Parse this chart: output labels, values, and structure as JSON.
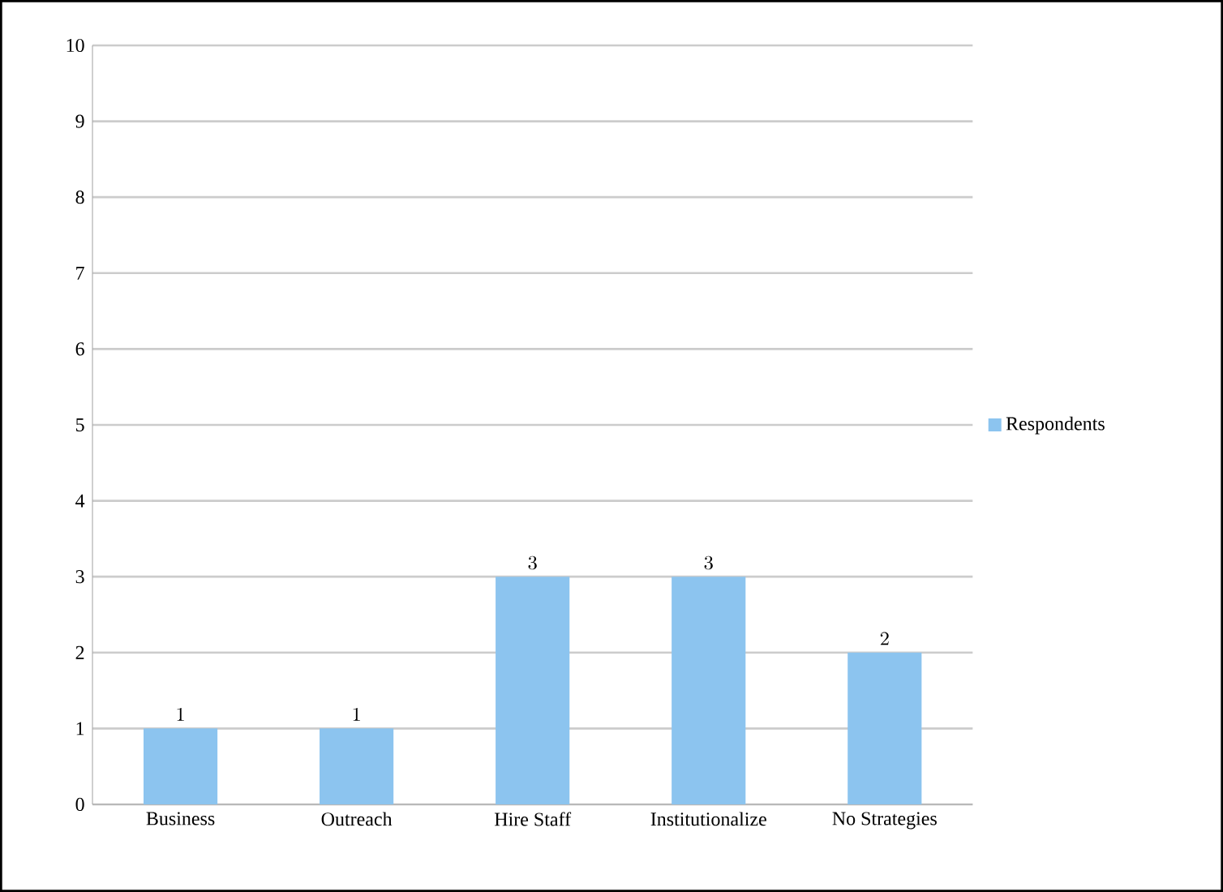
{
  "chart_data": {
    "type": "bar",
    "categories": [
      "Business",
      "Outreach",
      "Hire Staff",
      "Institutionalize",
      "No Strategies"
    ],
    "series": [
      {
        "name": "Respondents",
        "color": "#8cc4ef",
        "values": [
          1,
          1,
          3,
          3,
          2
        ]
      }
    ],
    "ylim": [
      0,
      10
    ],
    "yticks": [
      0,
      1,
      2,
      3,
      4,
      5,
      6,
      7,
      8,
      9,
      10
    ],
    "grid": "y",
    "legend": "right",
    "data_labels": true
  }
}
